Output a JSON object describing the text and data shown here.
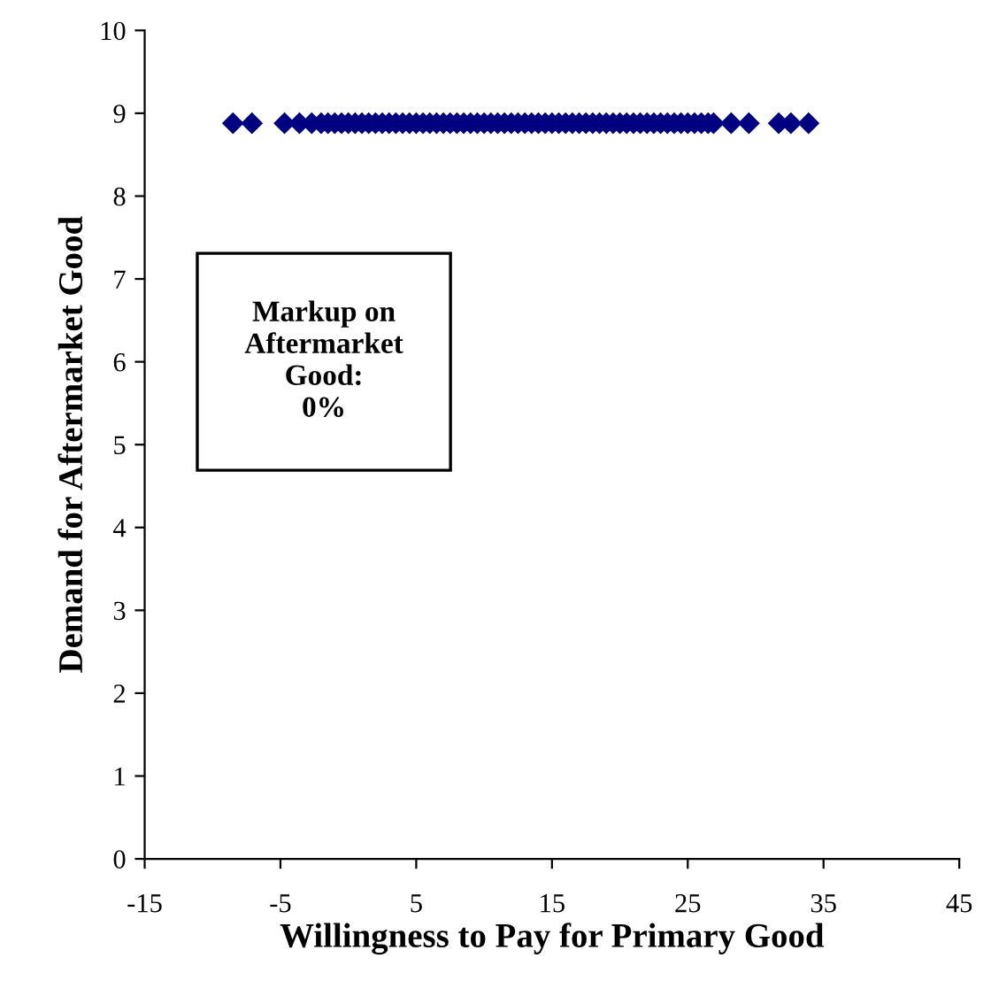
{
  "chart_data": {
    "type": "scatter",
    "xlabel": "Willingness to Pay for Primary Good",
    "ylabel": "Demand for Aftermarket Good",
    "annotations": [
      "Markup on\nAftermarket\nGood:\n0%"
    ],
    "x": [
      -8.5,
      -7.1,
      -4.7,
      -3.6,
      -2.7,
      -2.0,
      -1.5,
      -1.0,
      -0.5,
      0.0,
      0.5,
      1.0,
      1.5,
      2.0,
      2.5,
      3.0,
      3.5,
      4.0,
      4.5,
      5.0,
      5.5,
      6.0,
      6.5,
      7.0,
      7.5,
      8.0,
      8.5,
      9.0,
      9.5,
      10.0,
      10.5,
      11.0,
      11.5,
      12.0,
      12.5,
      13.0,
      13.5,
      14.0,
      14.5,
      15.0,
      15.5,
      16.0,
      16.5,
      17.0,
      17.5,
      18.0,
      18.5,
      19.0,
      19.5,
      20.0,
      20.5,
      21.0,
      21.5,
      22.0,
      22.5,
      23.0,
      23.5,
      24.0,
      24.5,
      25.0,
      25.5,
      26.0,
      26.5,
      26.9,
      28.2,
      29.5,
      31.7,
      32.6,
      33.9
    ],
    "values": [
      8.88,
      8.88,
      8.88,
      8.88,
      8.88,
      8.88,
      8.88,
      8.88,
      8.88,
      8.88,
      8.88,
      8.88,
      8.88,
      8.88,
      8.88,
      8.88,
      8.88,
      8.88,
      8.88,
      8.88,
      8.88,
      8.88,
      8.88,
      8.88,
      8.88,
      8.88,
      8.88,
      8.88,
      8.88,
      8.88,
      8.88,
      8.88,
      8.88,
      8.88,
      8.88,
      8.88,
      8.88,
      8.88,
      8.88,
      8.88,
      8.88,
      8.88,
      8.88,
      8.88,
      8.88,
      8.88,
      8.88,
      8.88,
      8.88,
      8.88,
      8.88,
      8.88,
      8.88,
      8.88,
      8.88,
      8.88,
      8.88,
      8.88,
      8.88,
      8.88,
      8.88,
      8.88,
      8.88,
      8.88,
      8.88,
      8.88,
      8.88,
      8.88,
      8.88
    ],
    "color": "#000080",
    "marker": "diamond",
    "xlim": [
      -15,
      45
    ],
    "xticks": [
      -15,
      -5,
      5,
      15,
      25,
      35,
      45
    ],
    "ylim": [
      0,
      10
    ],
    "yticks": [
      0,
      1,
      2,
      3,
      4,
      5,
      6,
      7,
      8,
      9,
      10
    ]
  }
}
